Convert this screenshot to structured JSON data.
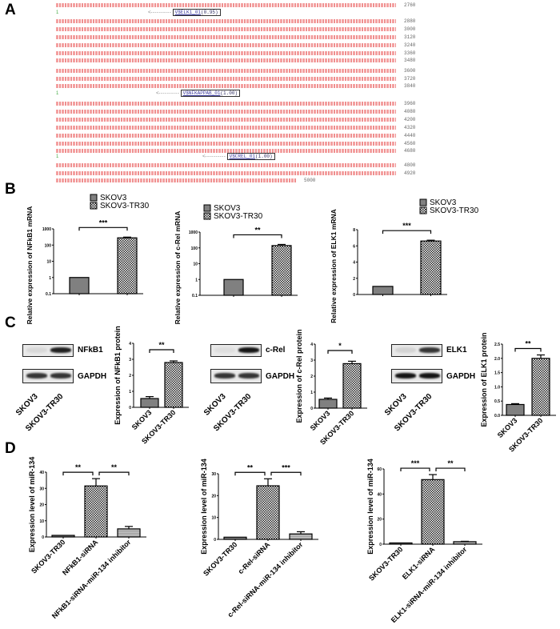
{
  "panels": {
    "a": "A",
    "b": "B",
    "c": "C",
    "d": "D"
  },
  "panel_a": {
    "line_numbers": [
      "2760",
      "2880",
      "3000",
      "3120",
      "3240",
      "3360",
      "3480",
      "3600",
      "3720",
      "3840",
      "3960",
      "4080",
      "4200",
      "4320",
      "4440",
      "4560",
      "4680",
      "4800",
      "4920",
      "5000"
    ],
    "track_marker": "1",
    "sites": [
      {
        "name": "V$ELK1_01",
        "score": "(0.95)"
      },
      {
        "name": "V$NFKAPPAB_01",
        "score": "(1.00)"
      },
      {
        "name": "V$CREL_01",
        "score": "(1.00)"
      }
    ],
    "sequence_color": "#e06060"
  },
  "legend": {
    "skov3": "SKOV3",
    "tr30": "SKOV3-TR30"
  },
  "blots": [
    {
      "target": "NFkB1",
      "control": "GAPDH",
      "lanes": [
        "SKOV3",
        "SKOV3-TR30"
      ]
    },
    {
      "target": "c-Rel",
      "control": "GAPDH",
      "lanes": [
        "SKOV3",
        "SKOV3-TR30"
      ]
    },
    {
      "target": "ELK1",
      "control": "GAPDH",
      "lanes": [
        "SKOV3",
        "SKOV3-TR30"
      ]
    }
  ],
  "chart_data": [
    {
      "id": "b1",
      "type": "bar",
      "ylabel": "Relative expression of NFkB1 mRNA",
      "yscale": "log",
      "ylim": [
        0.1,
        1000
      ],
      "yticks": [
        "0.1",
        "1",
        "10",
        "100",
        "1000"
      ],
      "categories": [
        "SKOV3",
        "SKOV3-TR30"
      ],
      "values": [
        1,
        280
      ],
      "errors": [
        0,
        30
      ],
      "significance": [
        {
          "from": 0,
          "to": 1,
          "label": "***"
        }
      ],
      "legend": "top-right"
    },
    {
      "id": "b2",
      "type": "bar",
      "ylabel": "Relative expression of c-Rel mRNA",
      "yscale": "log",
      "ylim": [
        0.1,
        1000
      ],
      "yticks": [
        "0.1",
        "1",
        "10",
        "100",
        "1000"
      ],
      "categories": [
        "SKOV3",
        "SKOV3-TR30"
      ],
      "values": [
        1,
        140
      ],
      "errors": [
        0,
        25
      ],
      "significance": [
        {
          "from": 0,
          "to": 1,
          "label": "**"
        }
      ],
      "legend": "top-right"
    },
    {
      "id": "b3",
      "type": "bar",
      "ylabel": "Relative expression of ELK1 mRNA",
      "yscale": "linear",
      "ylim": [
        0,
        8
      ],
      "yticks": [
        "0",
        "2",
        "4",
        "6",
        "8"
      ],
      "categories": [
        "SKOV3",
        "SKOV3-TR30"
      ],
      "values": [
        1,
        6.6
      ],
      "errors": [
        0,
        0.1
      ],
      "significance": [
        {
          "from": 0,
          "to": 1,
          "label": "***"
        }
      ],
      "legend": "top-right"
    },
    {
      "id": "c1",
      "type": "bar",
      "ylabel": "Expression of NFkB1 protein",
      "yscale": "linear",
      "ylim": [
        0,
        4
      ],
      "yticks": [
        "0",
        "1",
        "2",
        "3",
        "4"
      ],
      "categories": [
        "SKOV3",
        "SKOV3-TR30"
      ],
      "values": [
        0.55,
        2.8
      ],
      "errors": [
        0.12,
        0.1
      ],
      "significance": [
        {
          "from": 0,
          "to": 1,
          "label": "**"
        }
      ]
    },
    {
      "id": "c2",
      "type": "bar",
      "ylabel": "Expression of c-Rel protein",
      "yscale": "linear",
      "ylim": [
        0,
        4
      ],
      "yticks": [
        "0",
        "1",
        "2",
        "3",
        "4"
      ],
      "categories": [
        "SKOV3",
        "SKOV3-TR30"
      ],
      "values": [
        0.55,
        2.78
      ],
      "errors": [
        0.08,
        0.15
      ],
      "significance": [
        {
          "from": 0,
          "to": 1,
          "label": "*"
        }
      ]
    },
    {
      "id": "c3",
      "type": "bar",
      "ylabel": "Expression of ELK1 protein",
      "yscale": "linear",
      "ylim": [
        0,
        2.5
      ],
      "yticks": [
        "0.0",
        "0.5",
        "1.0",
        "1.5",
        "2.0",
        "2.5"
      ],
      "categories": [
        "SKOV3",
        "SKOV3-TR30"
      ],
      "values": [
        0.38,
        2.0
      ],
      "errors": [
        0.03,
        0.12
      ],
      "significance": [
        {
          "from": 0,
          "to": 1,
          "label": "**"
        }
      ]
    },
    {
      "id": "d1",
      "type": "bar",
      "ylabel": "Expression level of miR-134",
      "yscale": "linear",
      "ylim": [
        0,
        40
      ],
      "yticks": [
        "0",
        "10",
        "20",
        "30",
        "40"
      ],
      "categories": [
        "SKOV3-TR30",
        "NFkB1-siRNA",
        "NFkB1-siRNA-miR-134 inhibitor"
      ],
      "values": [
        1,
        31.5,
        5
      ],
      "errors": [
        0,
        4.5,
        1.5
      ],
      "significance": [
        {
          "from": 0,
          "to": 1,
          "label": "**"
        },
        {
          "from": 1,
          "to": 2,
          "label": "**"
        }
      ]
    },
    {
      "id": "d2",
      "type": "bar",
      "ylabel": "Expression level of miR-134",
      "yscale": "linear",
      "ylim": [
        0,
        30
      ],
      "yticks": [
        "0",
        "10",
        "20",
        "30"
      ],
      "categories": [
        "SKOV3-TR30",
        "c-Rel-siRNA",
        "c-Rel-siRNA-miR-134 inhibitor"
      ],
      "values": [
        1,
        24.5,
        2.5
      ],
      "errors": [
        0,
        3.2,
        1
      ],
      "significance": [
        {
          "from": 0,
          "to": 1,
          "label": "**"
        },
        {
          "from": 1,
          "to": 2,
          "label": "***"
        }
      ]
    },
    {
      "id": "d3",
      "type": "bar",
      "ylabel": "Expression level of miR-134",
      "yscale": "linear",
      "ylim": [
        0,
        60
      ],
      "yticks": [
        "0",
        "20",
        "40",
        "60"
      ],
      "categories": [
        "SKOV3-TR30",
        "ELK1-siRNA",
        "ELK1-siRNA-miR-134 inhibitor"
      ],
      "values": [
        1,
        51.5,
        2
      ],
      "errors": [
        0,
        4,
        0.3
      ],
      "significance": [
        {
          "from": 0,
          "to": 1,
          "label": "***"
        },
        {
          "from": 1,
          "to": 2,
          "label": "**"
        }
      ]
    }
  ]
}
